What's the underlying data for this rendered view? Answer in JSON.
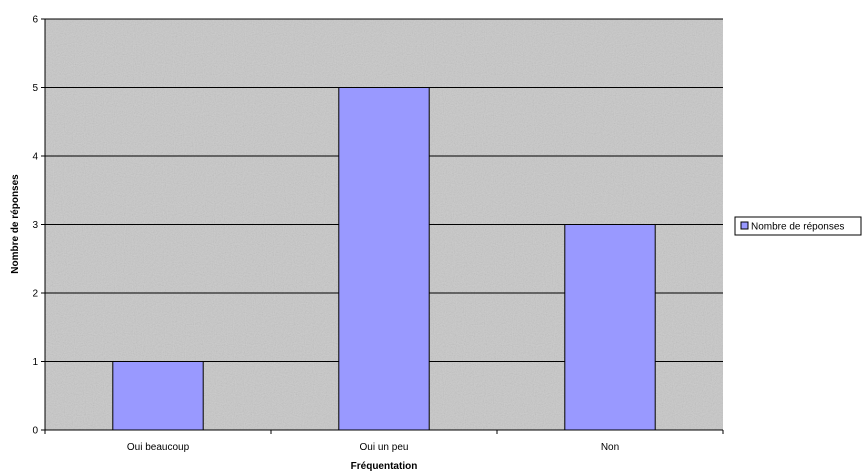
{
  "colors": {
    "plot_background": "#c8c8c8",
    "bar_fill": "#9999ff",
    "bar_stroke": "#000000",
    "gridline": "#000000"
  },
  "chart_data": {
    "type": "bar",
    "categories": [
      "Oui beaucoup",
      "Oui un peu",
      "Non"
    ],
    "series": [
      {
        "name": "Nombre de réponses",
        "values": [
          1,
          5,
          3
        ]
      }
    ],
    "xlabel": "Fréquentation",
    "ylabel": "Nombre de réponses",
    "ylim": [
      0,
      6
    ],
    "yticks": [
      "0",
      "1",
      "2",
      "3",
      "4",
      "5",
      "6"
    ],
    "grid": true,
    "legend": "right"
  }
}
